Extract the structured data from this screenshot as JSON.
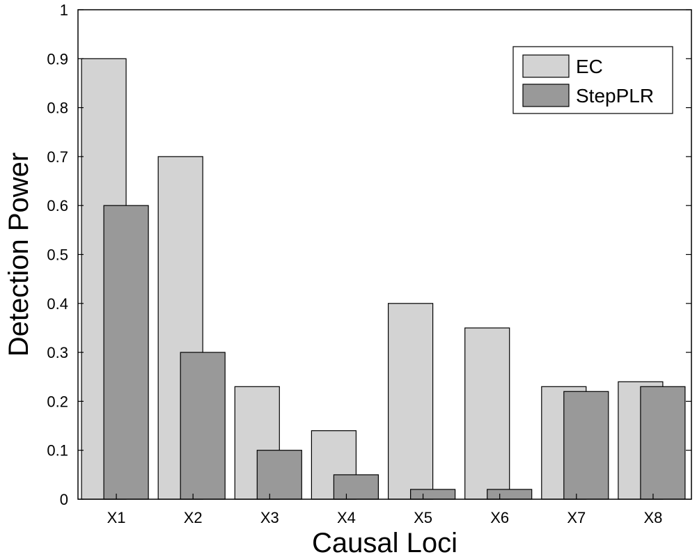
{
  "chart_data": {
    "type": "bar",
    "categories": [
      "X1",
      "X2",
      "X3",
      "X4",
      "X5",
      "X6",
      "X7",
      "X8"
    ],
    "series": [
      {
        "name": "EC",
        "values": [
          0.9,
          0.7,
          0.23,
          0.14,
          0.4,
          0.35,
          0.23,
          0.24
        ],
        "color": "#d3d3d3"
      },
      {
        "name": "StepPLR",
        "values": [
          0.6,
          0.3,
          0.1,
          0.05,
          0.02,
          0.02,
          0.22,
          0.23
        ],
        "color": "#999999"
      }
    ],
    "xlabel": "Causal Loci",
    "ylabel": "Detection Power",
    "ylim": [
      0,
      1
    ],
    "yticks": [
      "0",
      "0.1",
      "0.2",
      "0.3",
      "0.4",
      "0.5",
      "0.6",
      "0.7",
      "0.8",
      "0.9",
      "1"
    ],
    "legend": "top-right",
    "grid": false
  }
}
